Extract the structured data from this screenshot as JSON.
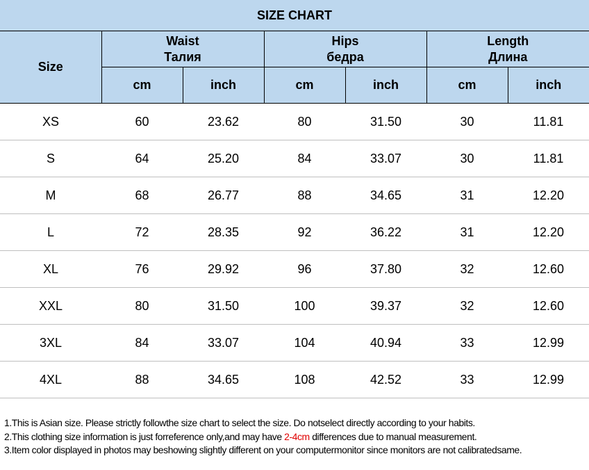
{
  "title": "SIZE CHART",
  "headers": {
    "size": "Size",
    "waist": "Waist",
    "waist_ru": "Талия",
    "hips": "Hips",
    "hips_ru": "бедра",
    "length": "Length",
    "length_ru": "Длина",
    "cm": "cm",
    "inch": "inch"
  },
  "accent_color": "#bdd7ee",
  "rows": [
    [
      "XS",
      "60",
      "23.62",
      "80",
      "31.50",
      "30",
      "11.81"
    ],
    [
      "S",
      "64",
      "25.20",
      "84",
      "33.07",
      "30",
      "11.81"
    ],
    [
      "M",
      "68",
      "26.77",
      "88",
      "34.65",
      "31",
      "12.20"
    ],
    [
      "L",
      "72",
      "28.35",
      "92",
      "36.22",
      "31",
      "12.20"
    ],
    [
      "XL",
      "76",
      "29.92",
      "96",
      "37.80",
      "32",
      "12.60"
    ],
    [
      "XXL",
      "80",
      "31.50",
      "100",
      "39.37",
      "32",
      "12.60"
    ],
    [
      "3XL",
      "84",
      "33.07",
      "104",
      "40.94",
      "33",
      "12.99"
    ],
    [
      "4XL",
      "88",
      "34.65",
      "108",
      "42.52",
      "33",
      "12.99"
    ]
  ],
  "notes": {
    "n1": "1.This is Asian size. Please strictly followthe size chart to select the size. Do notselect directly according to your habits.",
    "n2_before": "2.This clothing size information is just forreference only,and may have ",
    "n2_red": "2-4cm",
    "n2_after": " differences due to manual measurement.",
    "n3": "3.Item color displayed in photos may beshowing slightly different on your computermonitor since monitors are not calibratedsame."
  }
}
